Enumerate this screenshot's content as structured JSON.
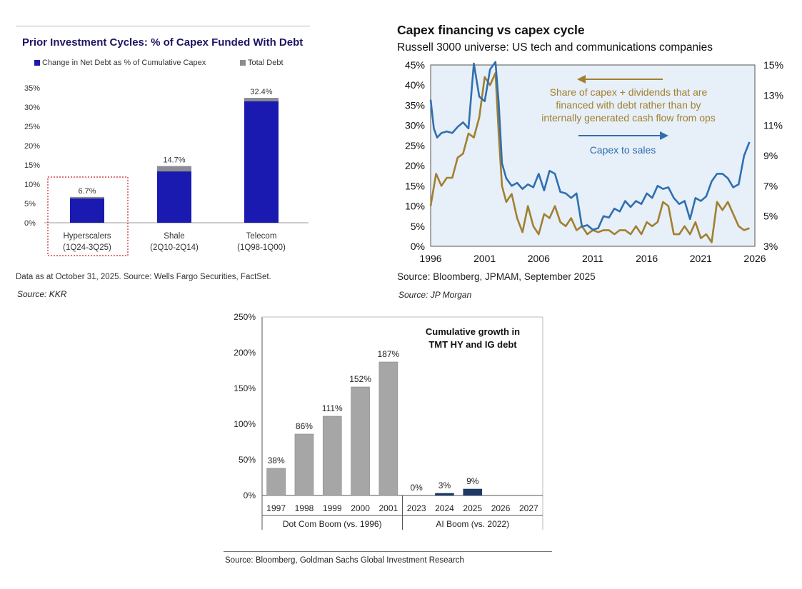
{
  "panel1": {
    "title": "Prior Investment Cycles: % of Capex Funded With Debt",
    "legend": [
      {
        "label": "Change in Net Debt as % of Cumulative Capex",
        "color": "#1a1ab0"
      },
      {
        "label": "Total Debt",
        "color": "#8c8c94"
      }
    ],
    "note": "Data as at October 31, 2025. Source: Wells Fargo Securities, FactSet.",
    "source": "Source: KKR"
  },
  "panel2": {
    "title": "Capex financing vs capex cycle",
    "subtitle": "Russell 3000 universe: US tech and communications companies",
    "annotation_gold": [
      "Share of capex + dividends that are",
      "financed with debt rather than by",
      "internally generated cash flow from ops"
    ],
    "annotation_blue": "Capex to sales",
    "note": "Source: Bloomberg, JPMAM, September 2025",
    "source": "Source: JP Morgan"
  },
  "panel3": {
    "source": "Source: Bloomberg, Goldman Sachs Global Investment Research"
  },
  "chart_data": [
    {
      "type": "bar",
      "title": "Prior Investment Cycles: % of Capex Funded With Debt",
      "categories": [
        "Hyperscalers",
        "Shale",
        "Telecom"
      ],
      "category_periods": [
        "(1Q24-3Q25)",
        "(2Q10-2Q14)",
        "(1Q98-1Q00)"
      ],
      "series": [
        {
          "name": "Change in Net Debt as % of Cumulative Capex",
          "values": [
            6.3,
            13.3,
            31.5
          ],
          "color": "#1a1ab0"
        },
        {
          "name": "Total Debt",
          "values": [
            6.7,
            14.7,
            32.4
          ],
          "color": "#8c8c94"
        }
      ],
      "data_labels": [
        "6.7%",
        "14.7%",
        "32.4%"
      ],
      "ylim": [
        0,
        35
      ],
      "yticks": [
        "0%",
        "5%",
        "10%",
        "15%",
        "20%",
        "25%",
        "30%",
        "35%"
      ],
      "highlight": "Hyperscalers",
      "stacked_overlay": true
    },
    {
      "type": "line",
      "title": "Capex financing vs capex cycle",
      "xlim": [
        1996,
        2026
      ],
      "xticks": [
        "1996",
        "2001",
        "2006",
        "2011",
        "2016",
        "2021",
        "2026"
      ],
      "ylim_left": [
        0,
        45
      ],
      "yticks_left": [
        "0%",
        "5%",
        "10%",
        "15%",
        "20%",
        "25%",
        "30%",
        "35%",
        "40%",
        "45%"
      ],
      "ylim_right": [
        3,
        15
      ],
      "yticks_right": [
        "3%",
        "5%",
        "7%",
        "9%",
        "11%",
        "13%",
        "15%"
      ],
      "series": [
        {
          "name": "Share of capex + dividends financed with debt",
          "axis": "left",
          "color": "#a08030",
          "x": [
            1996,
            1996.5,
            1997,
            1997.5,
            1998,
            1998.5,
            1999,
            1999.5,
            2000,
            2000.5,
            2001,
            2001.5,
            2002,
            2002.3,
            2002.6,
            2003,
            2003.5,
            2004,
            2004.5,
            2005,
            2005.5,
            2006,
            2006.5,
            2007,
            2007.5,
            2008,
            2008.5,
            2009,
            2009.5,
            2010,
            2010.5,
            2011,
            2011.5,
            2012,
            2012.5,
            2013,
            2013.5,
            2014,
            2014.5,
            2015,
            2015.5,
            2016,
            2016.5,
            2017,
            2017.5,
            2018,
            2018.5,
            2019,
            2019.5,
            2020,
            2020.5,
            2021,
            2021.5,
            2022,
            2022.5,
            2023,
            2023.5,
            2024,
            2024.5,
            2025,
            2025.5
          ],
          "values": [
            10,
            18,
            15,
            17,
            17,
            22,
            23,
            28,
            27,
            32,
            42,
            40,
            43,
            28,
            15,
            11,
            13,
            7,
            3.5,
            10,
            5,
            3,
            8,
            7,
            10,
            6,
            5,
            7,
            4,
            5,
            3,
            4,
            3.5,
            4,
            4,
            3,
            4,
            4,
            3,
            5,
            3,
            6,
            5,
            6,
            11,
            10,
            3,
            3,
            5,
            3,
            6,
            2,
            3,
            1,
            11,
            9,
            11,
            8,
            5,
            4,
            4.5
          ]
        },
        {
          "name": "Capex to sales",
          "axis": "right",
          "color": "#2f6fb0",
          "x": [
            1996,
            1996.3,
            1996.6,
            1997,
            1997.5,
            1998,
            1998.5,
            1999,
            1999.5,
            2000,
            2000.5,
            2001,
            2001.5,
            2002,
            2002.3,
            2002.6,
            2003,
            2003.5,
            2004,
            2004.5,
            2005,
            2005.5,
            2006,
            2006.5,
            2007,
            2007.5,
            2008,
            2008.5,
            2009,
            2009.5,
            2010,
            2010.5,
            2011,
            2011.5,
            2012,
            2012.5,
            2013,
            2013.5,
            2014,
            2014.5,
            2015,
            2015.5,
            2016,
            2016.5,
            2017,
            2017.5,
            2018,
            2018.5,
            2019,
            2019.5,
            2020,
            2020.5,
            2021,
            2021.5,
            2022,
            2022.5,
            2023,
            2023.5,
            2024,
            2024.5,
            2025,
            2025.5
          ],
          "values": [
            12.7,
            10.8,
            10.2,
            10.5,
            10.6,
            10.5,
            10.9,
            11.2,
            10.8,
            15.1,
            12.9,
            12.6,
            14.7,
            15.2,
            12.5,
            8.5,
            7.5,
            7,
            7.2,
            6.8,
            7.1,
            6.9,
            7.8,
            6.7,
            8.0,
            7.8,
            6.6,
            6.5,
            6.2,
            6.5,
            4.3,
            4.4,
            4.1,
            4.2,
            5.0,
            4.9,
            5.5,
            5.3,
            6.0,
            5.6,
            6.0,
            5.8,
            6.5,
            6.2,
            7.0,
            6.8,
            6.9,
            6.2,
            5.8,
            6.0,
            4.8,
            6.2,
            6.0,
            6.3,
            7.3,
            7.8,
            7.8,
            7.5,
            6.9,
            7.1,
            9.0,
            9.9
          ]
        }
      ],
      "annotations": [
        "Share of capex + dividends that are financed with debt rather than by internally generated cash flow from ops",
        "Capex to sales"
      ]
    },
    {
      "type": "bar",
      "title": "Cumulative growth in TMT HY and IG debt",
      "categories": [
        "1997",
        "1998",
        "1999",
        "2000",
        "2001",
        "2023",
        "2024",
        "2025",
        "2026",
        "2027"
      ],
      "values": [
        38,
        86,
        111,
        152,
        187,
        0,
        3,
        9,
        null,
        null
      ],
      "data_labels": [
        "38%",
        "86%",
        "111%",
        "152%",
        "187%",
        "0%",
        "3%",
        "9%",
        "",
        ""
      ],
      "groups": [
        {
          "label": "Dot Com Boom (vs. 1996)",
          "categories": [
            "1997",
            "1998",
            "1999",
            "2000",
            "2001"
          ],
          "color": "#a6a6a6"
        },
        {
          "label": "AI Boom (vs. 2022)",
          "categories": [
            "2023",
            "2024",
            "2025",
            "2026",
            "2027"
          ],
          "color": "#1f3864"
        }
      ],
      "ylim": [
        0,
        250
      ],
      "yticks": [
        "0%",
        "50%",
        "100%",
        "150%",
        "200%",
        "250%"
      ]
    }
  ]
}
